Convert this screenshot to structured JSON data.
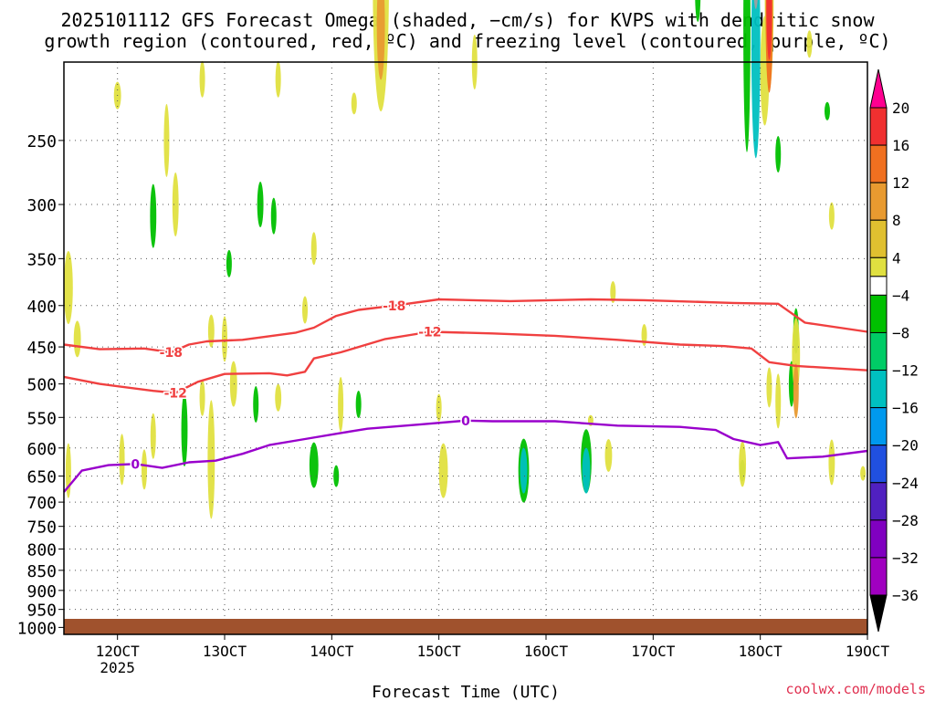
{
  "chart_data": {
    "type": "heatmap",
    "title_lines": [
      "2025101112 GFS Forecast Omega (shaded, −cm/s) for KVPS with dendritic snow",
      "growth region (contoured, red, ºC) and freezing level (contoured, purple, ºC)"
    ],
    "xlabel": "Forecast Time (UTC)",
    "x_ticks": [
      "12OCT",
      "13OCT",
      "14OCT",
      "15OCT",
      "16OCT",
      "17OCT",
      "18OCT",
      "19OCT"
    ],
    "x_tick_hours": [
      12,
      36,
      60,
      84,
      108,
      132,
      156,
      180
    ],
    "x_year_label": "2025",
    "xlim_hours": [
      0,
      180
    ],
    "y_ticks": [
      250,
      300,
      350,
      400,
      450,
      500,
      550,
      600,
      650,
      700,
      750,
      800,
      850,
      900,
      950,
      1000
    ],
    "y_scale": "log-pressure",
    "ylim": [
      200,
      1020
    ],
    "grid": true,
    "colorbar": {
      "labels": [
        "20",
        "16",
        "12",
        "8",
        "4",
        "−4",
        "−8",
        "−12",
        "−16",
        "−20",
        "−24",
        "−28",
        "−32",
        "−36"
      ],
      "boundaries": [
        20,
        16,
        12,
        8,
        4,
        -4,
        -8,
        -12,
        -16,
        -20,
        -24,
        -28,
        -32,
        -36
      ],
      "colors": [
        "#ff0090",
        "#f03030",
        "#f07020",
        "#e89a30",
        "#e0c030",
        "#e0e040",
        "#ffffff",
        "#00c000",
        "#00cc66",
        "#00c0c0",
        "#0099ee",
        "#2050e0",
        "#5020c0",
        "#8000c0",
        "#a000c0",
        "#a0a0a0",
        "#000000"
      ]
    },
    "contours": [
      {
        "label": "-18",
        "color": "#f04040",
        "points": [
          [
            0,
            447
          ],
          [
            8,
            453
          ],
          [
            18,
            452
          ],
          [
            24,
            457
          ],
          [
            28,
            447
          ],
          [
            32,
            443
          ],
          [
            40,
            441
          ],
          [
            52,
            432
          ],
          [
            56,
            426
          ],
          [
            61,
            412
          ],
          [
            66,
            405
          ],
          [
            74,
            400
          ],
          [
            84,
            393
          ],
          [
            100,
            395
          ],
          [
            118,
            393
          ],
          [
            130,
            394
          ],
          [
            150,
            397
          ],
          [
            160,
            398
          ],
          [
            166,
            420
          ],
          [
            180,
            431
          ]
        ]
      },
      {
        "label": "-12",
        "color": "#f04040",
        "points": [
          [
            0,
            490
          ],
          [
            8,
            500
          ],
          [
            20,
            510
          ],
          [
            25,
            513
          ],
          [
            30,
            497
          ],
          [
            36,
            486
          ],
          [
            46,
            485
          ],
          [
            50,
            488
          ],
          [
            54,
            483
          ],
          [
            56,
            465
          ],
          [
            62,
            457
          ],
          [
            72,
            440
          ],
          [
            82,
            431
          ],
          [
            96,
            433
          ],
          [
            110,
            436
          ],
          [
            124,
            441
          ],
          [
            138,
            447
          ],
          [
            148,
            449
          ],
          [
            154,
            452
          ],
          [
            158,
            470
          ],
          [
            164,
            475
          ],
          [
            180,
            481
          ]
        ]
      },
      {
        "label": "0",
        "color": "#9900cc",
        "points": [
          [
            0,
            680
          ],
          [
            4,
            640
          ],
          [
            10,
            630
          ],
          [
            16,
            628
          ],
          [
            22,
            635
          ],
          [
            28,
            625
          ],
          [
            34,
            622
          ],
          [
            40,
            610
          ],
          [
            46,
            595
          ],
          [
            54,
            585
          ],
          [
            62,
            575
          ],
          [
            68,
            568
          ],
          [
            80,
            561
          ],
          [
            90,
            555
          ],
          [
            96,
            556
          ],
          [
            110,
            556
          ],
          [
            124,
            563
          ],
          [
            138,
            565
          ],
          [
            146,
            570
          ],
          [
            150,
            585
          ],
          [
            156,
            595
          ],
          [
            160,
            590
          ],
          [
            162,
            618
          ],
          [
            170,
            615
          ],
          [
            180,
            605
          ]
        ]
      }
    ],
    "annotations": [
      "coolwx.com/models"
    ],
    "surface_color": "#a0522d"
  }
}
